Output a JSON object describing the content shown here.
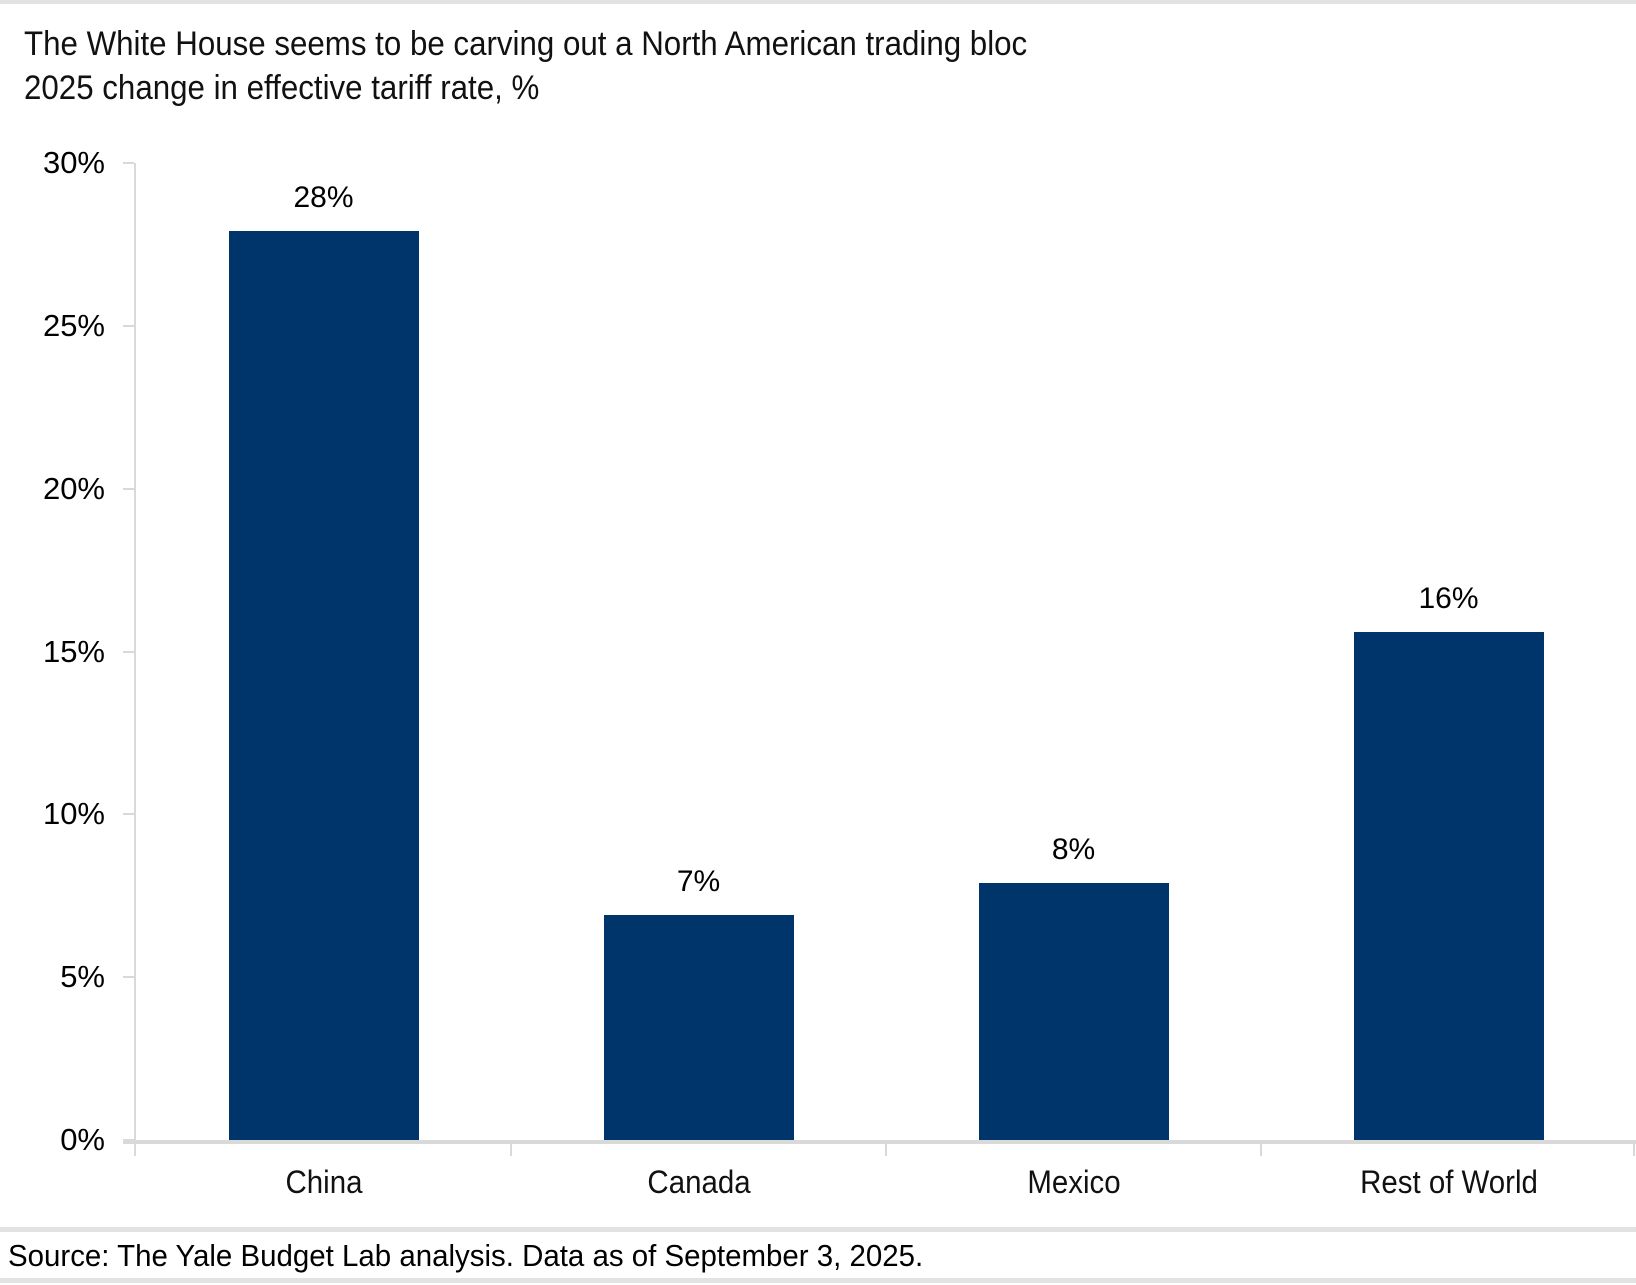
{
  "header": {
    "title": "The White House seems to be carving out a North American trading bloc",
    "subtitle": "2025 change in effective tariff rate, %"
  },
  "footer": {
    "source": "Source: The Yale Budget Lab analysis. Data as of September 3, 2025."
  },
  "colors": {
    "bar": "#00356b",
    "axis": "#d9d9d9",
    "divider": "#e2e2e2",
    "text": "#000000",
    "background": "#ffffff"
  },
  "chart_data": {
    "type": "bar",
    "title": "The White House seems to be carving out a North American trading bloc",
    "subtitle": "2025 change in effective tariff rate, %",
    "categories": [
      "China",
      "Canada",
      "Mexico",
      "Rest of World"
    ],
    "values": [
      27.9,
      6.9,
      7.9,
      15.6
    ],
    "data_labels": [
      "28%",
      "7%",
      "8%",
      "16%"
    ],
    "xlabel": "",
    "ylabel": "",
    "ylim": [
      0,
      30
    ],
    "ytick_values": [
      0,
      5,
      10,
      15,
      20,
      25,
      30
    ],
    "ytick_labels": [
      "0%",
      "5%",
      "10%",
      "15%",
      "20%",
      "25%",
      "30%"
    ],
    "grid": false,
    "legend": false,
    "bar_color": "#00356b",
    "source": "Source: The Yale Budget Lab analysis. Data as of September 3, 2025."
  }
}
